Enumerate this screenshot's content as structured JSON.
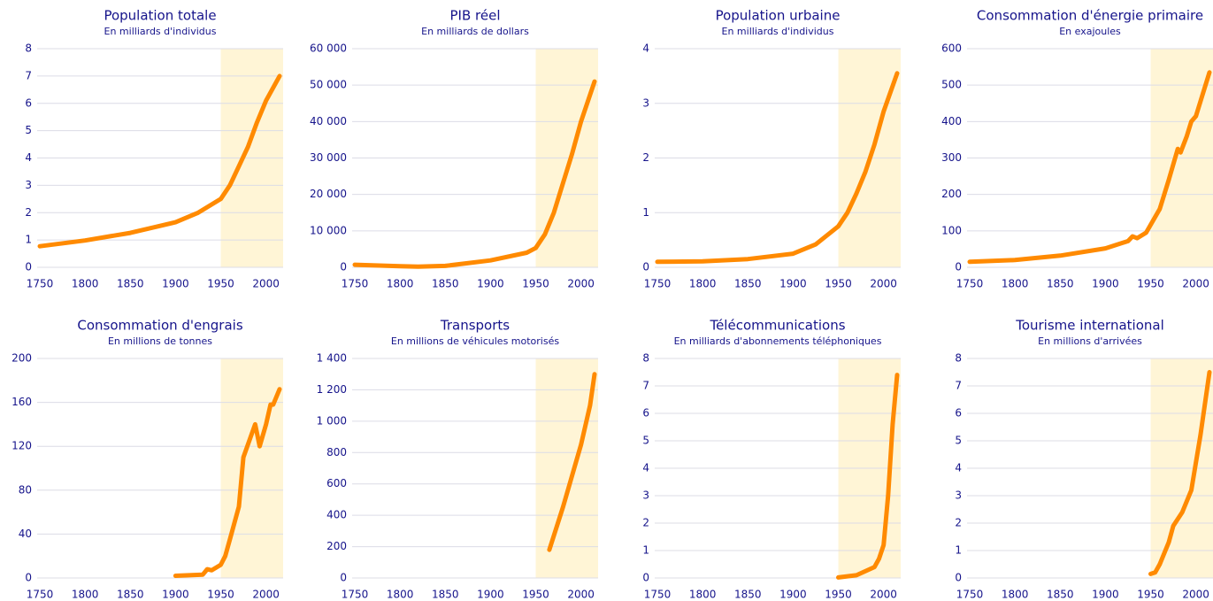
{
  "chart_data": [
    {
      "type": "line",
      "title": "Population totale",
      "subtitle": "En milliards d'individus",
      "x": [
        1750,
        1800,
        1850,
        1900,
        1925,
        1950,
        1960,
        1970,
        1980,
        1990,
        2000,
        2015
      ],
      "values": [
        0.77,
        0.98,
        1.26,
        1.65,
        2.0,
        2.5,
        3.0,
        3.7,
        4.4,
        5.3,
        6.1,
        7.0
      ],
      "color": "#ff8a00",
      "highlight": [
        1950,
        2015
      ],
      "xlim": [
        1750,
        2015
      ],
      "ylim": [
        0,
        8
      ],
      "xticks": [
        1750,
        1800,
        1850,
        1900,
        1950,
        2000
      ],
      "yticks": [
        0,
        1,
        2,
        3,
        4,
        5,
        6,
        7,
        8
      ],
      "grid": true
    },
    {
      "type": "line",
      "title": "PIB réel",
      "subtitle": "En milliards de dollars",
      "x": [
        1750,
        1800,
        1820,
        1850,
        1900,
        1940,
        1950,
        1960,
        1970,
        1980,
        1990,
        2000,
        2015
      ],
      "values": [
        700,
        300,
        200,
        400,
        1900,
        4000,
        5300,
        9000,
        15000,
        23000,
        31000,
        40000,
        51000
      ],
      "color": "#ff8a00",
      "highlight": [
        1950,
        2015
      ],
      "xlim": [
        1750,
        2015
      ],
      "ylim": [
        0,
        60000
      ],
      "xticks": [
        1750,
        1800,
        1850,
        1900,
        1950,
        2000
      ],
      "yticks": [
        0,
        {
          "value": 10000,
          "label": "10 000"
        },
        {
          "value": 20000,
          "label": "20 000"
        },
        {
          "value": 30000,
          "label": "30 000"
        },
        {
          "value": 40000,
          "label": "40 000"
        },
        {
          "value": 50000,
          "label": "50 000"
        },
        {
          "value": 60000,
          "label": "60 000"
        }
      ],
      "grid": true
    },
    {
      "type": "line",
      "title": "Population urbaine",
      "subtitle": "En milliards d'individus",
      "x": [
        1750,
        1800,
        1850,
        1900,
        1925,
        1950,
        1960,
        1970,
        1980,
        1990,
        2000,
        2015
      ],
      "values": [
        0.1,
        0.11,
        0.15,
        0.25,
        0.42,
        0.75,
        1.0,
        1.35,
        1.75,
        2.25,
        2.85,
        3.55
      ],
      "color": "#ff8a00",
      "highlight": [
        1950,
        2015
      ],
      "xlim": [
        1750,
        2015
      ],
      "ylim": [
        0,
        4
      ],
      "xticks": [
        1750,
        1800,
        1850,
        1900,
        1950,
        2000
      ],
      "yticks": [
        0,
        1,
        2,
        3,
        4
      ],
      "grid": true
    },
    {
      "type": "line",
      "title": "Consommation d'énergie primaire",
      "subtitle": "En exajoules",
      "x": [
        1750,
        1800,
        1850,
        1900,
        1925,
        1930,
        1935,
        1945,
        1960,
        1970,
        1980,
        1983,
        1990,
        1995,
        2000,
        2015
      ],
      "values": [
        15,
        20,
        32,
        52,
        72,
        85,
        80,
        95,
        160,
        240,
        325,
        315,
        360,
        400,
        415,
        535
      ],
      "color": "#ff8a00",
      "highlight": [
        1950,
        2015
      ],
      "xlim": [
        1750,
        2015
      ],
      "ylim": [
        0,
        600
      ],
      "xticks": [
        1750,
        1800,
        1850,
        1900,
        1950,
        2000
      ],
      "yticks": [
        0,
        100,
        200,
        300,
        400,
        500,
        600
      ],
      "grid": true
    },
    {
      "type": "line",
      "title": "Consommation d'engrais",
      "subtitle": "En millions de tonnes",
      "x": [
        1900,
        1930,
        1935,
        1940,
        1950,
        1955,
        1960,
        1970,
        1975,
        1988,
        1993,
        2000,
        2005,
        2008,
        2015
      ],
      "values": [
        2,
        3,
        8,
        7,
        12,
        20,
        35,
        65,
        110,
        140,
        120,
        140,
        158,
        158,
        172
      ],
      "color": "#ff8a00",
      "highlight": [
        1950,
        2015
      ],
      "xlim": [
        1750,
        2015
      ],
      "ylim": [
        0,
        200
      ],
      "xticks": [
        1750,
        1800,
        1850,
        1900,
        1950,
        2000
      ],
      "yticks": [
        0,
        40,
        80,
        120,
        160,
        200
      ],
      "grid": true
    },
    {
      "type": "line",
      "title": "Transports",
      "subtitle": "En millions de véhicules motorisés",
      "x": [
        1965,
        1980,
        2000,
        2010,
        2015
      ],
      "values": [
        180,
        450,
        850,
        1100,
        1300
      ],
      "color": "#ff8a00",
      "highlight": [
        1950,
        2015
      ],
      "xlim": [
        1750,
        2015
      ],
      "ylim": [
        0,
        1400
      ],
      "xticks": [
        1750,
        1800,
        1850,
        1900,
        1950,
        2000
      ],
      "yticks": [
        0,
        200,
        400,
        600,
        800,
        {
          "value": 1000,
          "label": "1 000"
        },
        {
          "value": 1200,
          "label": "1 200"
        },
        {
          "value": 1400,
          "label": "1 400"
        }
      ],
      "grid": true
    },
    {
      "type": "line",
      "title": "Télécommunications",
      "subtitle": "En milliards d'abonnements téléphoniques",
      "x": [
        1950,
        1970,
        1990,
        1995,
        2000,
        2005,
        2010,
        2015
      ],
      "values": [
        0.02,
        0.1,
        0.4,
        0.7,
        1.2,
        3.0,
        5.6,
        7.4
      ],
      "color": "#ff8a00",
      "highlight": [
        1950,
        2015
      ],
      "xlim": [
        1750,
        2015
      ],
      "ylim": [
        0,
        8
      ],
      "xticks": [
        1750,
        1800,
        1850,
        1900,
        1950,
        2000
      ],
      "yticks": [
        0,
        1,
        2,
        3,
        4,
        5,
        6,
        7,
        8
      ],
      "grid": true
    },
    {
      "type": "line",
      "title": "Tourisme international",
      "subtitle": "En millions d'arrivées",
      "x": [
        1950,
        1955,
        1960,
        1970,
        1975,
        1985,
        1995,
        2005,
        2015
      ],
      "values": [
        0.15,
        0.2,
        0.5,
        1.3,
        1.9,
        2.4,
        3.2,
        5.2,
        7.5
      ],
      "color": "#ff8a00",
      "highlight": [
        1950,
        2015
      ],
      "xlim": [
        1750,
        2015
      ],
      "ylim": [
        0,
        8
      ],
      "xticks": [
        1750,
        1800,
        1850,
        1900,
        1950,
        2000
      ],
      "yticks": [
        0,
        1,
        2,
        3,
        4,
        5,
        6,
        7,
        8
      ],
      "grid": true
    }
  ]
}
